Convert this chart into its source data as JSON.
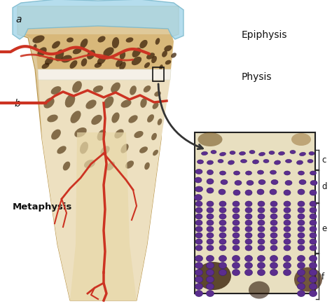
{
  "bg_color": "#ffffff",
  "epiphysis_label": "Epiphysis",
  "physis_label": "Physis",
  "metaphysis_label": "Metaphysis",
  "label_a": "a",
  "label_b": "b",
  "labels_cdef": [
    "c",
    "d",
    "e",
    "f"
  ],
  "bone_color": "#dfc99a",
  "bone_light": "#ede0c0",
  "bone_dark_spots": "#5a3510",
  "cartilage_color": "#a8d8ea",
  "cartilage_edge": "#7ab8cc",
  "blood_vessel_color": "#cc3322",
  "cell_color": "#5b2d8e",
  "cell_edge": "#3a1a6e",
  "inset_bg": "#e8dfc0",
  "inset_border": "#222222",
  "bracket_color": "#333333",
  "arrow_color": "#333333",
  "physis_color": "#f5f0e8",
  "shaft_color": "#d4b87a"
}
